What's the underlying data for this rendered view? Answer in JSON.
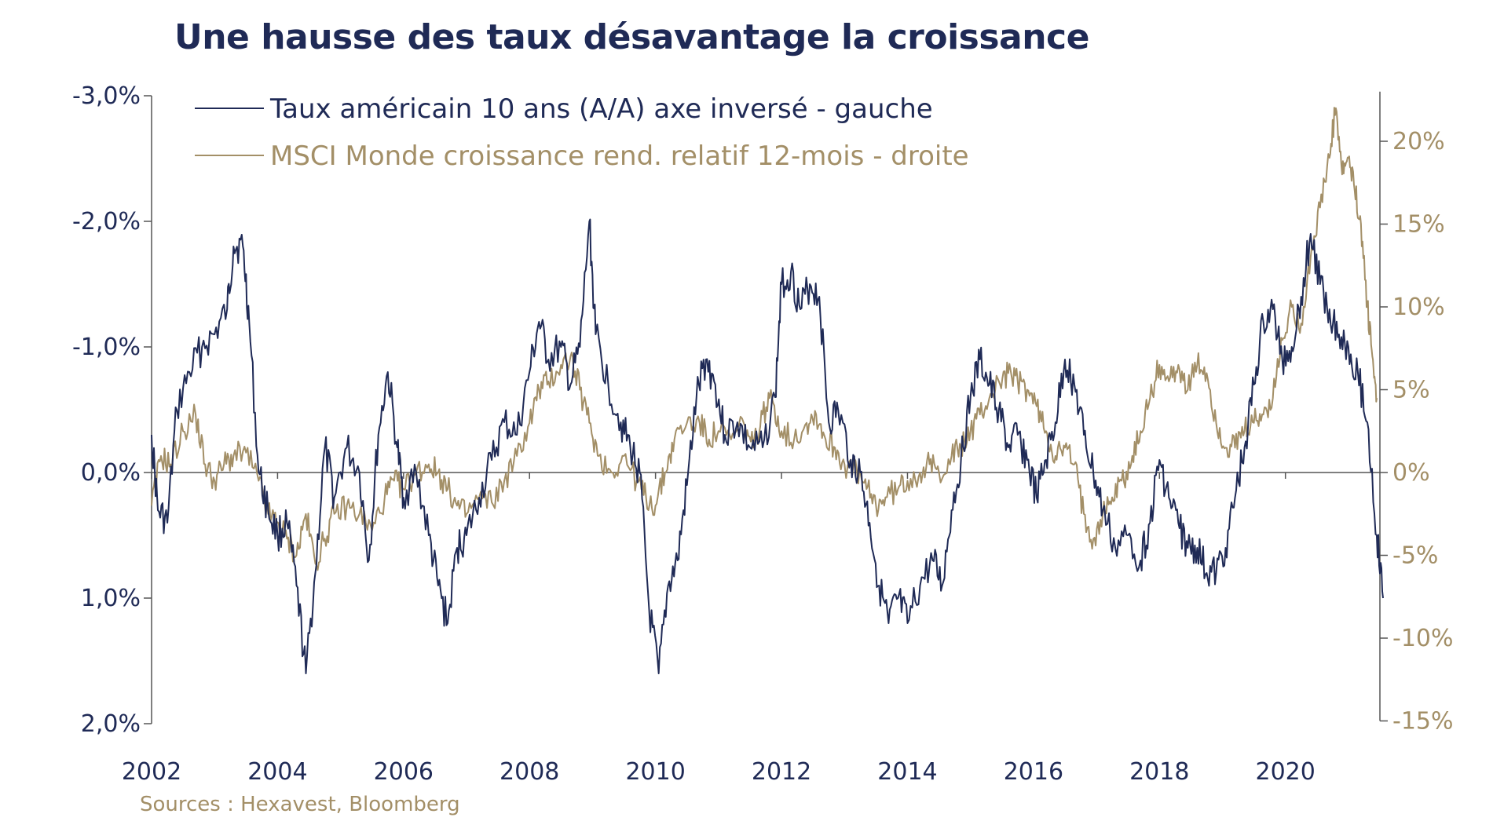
{
  "title": "Une hausse des taux désavantage la croissance",
  "source": "Sources : Hexavest, Bloomberg",
  "colors": {
    "navy": "#1f2a56",
    "tan": "#a38f67",
    "axis": "#555555"
  },
  "chart_data": {
    "type": "line",
    "xlim": [
      2002,
      2021.5
    ],
    "x_ticks": [
      "2002",
      "2004",
      "2006",
      "2008",
      "2010",
      "2012",
      "2014",
      "2016",
      "2018",
      "2020"
    ],
    "left_axis": {
      "inverted": true,
      "ylim": [
        -3.0,
        2.0
      ],
      "ticks": [
        -3,
        -2,
        -1,
        0,
        1,
        2
      ],
      "tick_labels": [
        "-3,0%",
        "-2,0%",
        "-1,0%",
        "0,0%",
        "1,0%",
        "2,0%"
      ]
    },
    "right_axis": {
      "ylim": [
        -15,
        23
      ],
      "ticks": [
        -15,
        -10,
        -5,
        0,
        5,
        10,
        15,
        20
      ],
      "tick_labels": [
        "-15%",
        "-10%",
        "-5%",
        "0%",
        "5%",
        "10%",
        "15%",
        "20%"
      ]
    },
    "legend_position": "top-left",
    "series": [
      {
        "name": "Taux américain 10 ans (A/A) axe inversé - gauche",
        "axis": "left",
        "color": "#1f2a56",
        "points": [
          [
            2002.0,
            -0.3
          ],
          [
            2002.1,
            0.3
          ],
          [
            2002.25,
            0.4
          ],
          [
            2002.4,
            -0.5
          ],
          [
            2002.6,
            -0.8
          ],
          [
            2002.8,
            -1.0
          ],
          [
            2003.0,
            -1.1
          ],
          [
            2003.2,
            -1.3
          ],
          [
            2003.3,
            -1.8
          ],
          [
            2003.45,
            -1.8
          ],
          [
            2003.55,
            -1.2
          ],
          [
            2003.7,
            0.0
          ],
          [
            2003.85,
            0.3
          ],
          [
            2004.0,
            0.5
          ],
          [
            2004.15,
            0.4
          ],
          [
            2004.3,
            0.9
          ],
          [
            2004.45,
            1.6
          ],
          [
            2004.6,
            0.8
          ],
          [
            2004.75,
            -0.2
          ],
          [
            2004.9,
            0.2
          ],
          [
            2005.1,
            -0.2
          ],
          [
            2005.3,
            0.0
          ],
          [
            2005.45,
            0.7
          ],
          [
            2005.6,
            -0.3
          ],
          [
            2005.75,
            -0.8
          ],
          [
            2005.9,
            -0.2
          ],
          [
            2006.0,
            0.2
          ],
          [
            2006.2,
            0.0
          ],
          [
            2006.4,
            0.5
          ],
          [
            2006.55,
            0.9
          ],
          [
            2006.7,
            1.2
          ],
          [
            2006.85,
            0.6
          ],
          [
            2007.0,
            0.5
          ],
          [
            2007.2,
            0.2
          ],
          [
            2007.4,
            -0.1
          ],
          [
            2007.6,
            -0.4
          ],
          [
            2007.8,
            -0.3
          ],
          [
            2008.0,
            -0.8
          ],
          [
            2008.15,
            -1.2
          ],
          [
            2008.3,
            -0.9
          ],
          [
            2008.5,
            -1.0
          ],
          [
            2008.65,
            -0.7
          ],
          [
            2008.8,
            -1.0
          ],
          [
            2008.95,
            -2.0
          ],
          [
            2009.05,
            -1.1
          ],
          [
            2009.25,
            -0.7
          ],
          [
            2009.45,
            -0.4
          ],
          [
            2009.6,
            -0.2
          ],
          [
            2009.75,
            0.0
          ],
          [
            2009.9,
            1.1
          ],
          [
            2010.05,
            1.6
          ],
          [
            2010.2,
            0.9
          ],
          [
            2010.35,
            0.7
          ],
          [
            2010.5,
            0.1
          ],
          [
            2010.65,
            -0.6
          ],
          [
            2010.8,
            -0.9
          ],
          [
            2010.95,
            -0.7
          ],
          [
            2011.1,
            -0.3
          ],
          [
            2011.3,
            -0.4
          ],
          [
            2011.5,
            -0.2
          ],
          [
            2011.7,
            -0.2
          ],
          [
            2011.9,
            -0.6
          ],
          [
            2012.0,
            -1.5
          ],
          [
            2012.15,
            -1.6
          ],
          [
            2012.3,
            -1.3
          ],
          [
            2012.45,
            -1.5
          ],
          [
            2012.6,
            -1.4
          ],
          [
            2012.75,
            -0.4
          ],
          [
            2012.9,
            -0.5
          ],
          [
            2013.1,
            -0.1
          ],
          [
            2013.25,
            0.0
          ],
          [
            2013.4,
            0.4
          ],
          [
            2013.55,
            0.9
          ],
          [
            2013.7,
            1.2
          ],
          [
            2013.85,
            1.0
          ],
          [
            2014.0,
            1.2
          ],
          [
            2014.2,
            0.9
          ],
          [
            2014.4,
            0.7
          ],
          [
            2014.55,
            0.9
          ],
          [
            2014.7,
            0.3
          ],
          [
            2014.85,
            -0.1
          ],
          [
            2015.0,
            -0.6
          ],
          [
            2015.15,
            -0.9
          ],
          [
            2015.3,
            -0.7
          ],
          [
            2015.45,
            -0.5
          ],
          [
            2015.6,
            -0.2
          ],
          [
            2015.75,
            -0.3
          ],
          [
            2015.9,
            -0.1
          ],
          [
            2016.05,
            0.2
          ],
          [
            2016.2,
            -0.1
          ],
          [
            2016.35,
            -0.4
          ],
          [
            2016.5,
            -0.9
          ],
          [
            2016.65,
            -0.7
          ],
          [
            2016.8,
            -0.3
          ],
          [
            2016.95,
            0.0
          ],
          [
            2017.1,
            0.3
          ],
          [
            2017.3,
            0.6
          ],
          [
            2017.5,
            0.5
          ],
          [
            2017.7,
            0.7
          ],
          [
            2017.85,
            0.4
          ],
          [
            2018.0,
            -0.1
          ],
          [
            2018.15,
            0.2
          ],
          [
            2018.3,
            0.4
          ],
          [
            2018.45,
            0.6
          ],
          [
            2018.6,
            0.6
          ],
          [
            2018.75,
            0.8
          ],
          [
            2018.9,
            0.8
          ],
          [
            2019.05,
            0.6
          ],
          [
            2019.2,
            0.2
          ],
          [
            2019.35,
            -0.2
          ],
          [
            2019.5,
            -0.7
          ],
          [
            2019.65,
            -1.2
          ],
          [
            2019.8,
            -1.3
          ],
          [
            2019.95,
            -0.9
          ],
          [
            2020.1,
            -1.0
          ],
          [
            2020.25,
            -1.4
          ],
          [
            2020.4,
            -1.9
          ],
          [
            2020.55,
            -1.5
          ],
          [
            2020.7,
            -1.3
          ],
          [
            2020.85,
            -1.1
          ],
          [
            2021.0,
            -1.0
          ],
          [
            2021.15,
            -0.8
          ],
          [
            2021.3,
            -0.4
          ],
          [
            2021.45,
            0.5
          ],
          [
            2021.55,
            1.0
          ]
        ]
      },
      {
        "name": "MSCI Monde croissance rend. relatif 12-mois - droite",
        "axis": "right",
        "color": "#a38f67",
        "points": [
          [
            2002.0,
            -2.0
          ],
          [
            2002.15,
            1.0
          ],
          [
            2002.3,
            0.5
          ],
          [
            2002.5,
            2.5
          ],
          [
            2002.7,
            3.5
          ],
          [
            2002.85,
            0.5
          ],
          [
            2003.0,
            -0.5
          ],
          [
            2003.15,
            0.5
          ],
          [
            2003.3,
            1.0
          ],
          [
            2003.5,
            1.2
          ],
          [
            2003.7,
            -0.5
          ],
          [
            2003.85,
            -2.5
          ],
          [
            2004.0,
            -3.0
          ],
          [
            2004.15,
            -4.0
          ],
          [
            2004.3,
            -5.0
          ],
          [
            2004.45,
            -2.5
          ],
          [
            2004.6,
            -5.5
          ],
          [
            2004.75,
            -4.0
          ],
          [
            2004.9,
            -2.5
          ],
          [
            2005.1,
            -2.0
          ],
          [
            2005.3,
            -2.5
          ],
          [
            2005.5,
            -3.5
          ],
          [
            2005.7,
            -1.5
          ],
          [
            2005.85,
            -0.5
          ],
          [
            2006.0,
            -1.0
          ],
          [
            2006.2,
            0.0
          ],
          [
            2006.4,
            0.5
          ],
          [
            2006.55,
            0.0
          ],
          [
            2006.7,
            -1.0
          ],
          [
            2006.85,
            -2.0
          ],
          [
            2007.0,
            -2.5
          ],
          [
            2007.2,
            -1.5
          ],
          [
            2007.4,
            -1.8
          ],
          [
            2007.6,
            -0.5
          ],
          [
            2007.8,
            1.0
          ],
          [
            2008.0,
            3.0
          ],
          [
            2008.15,
            5.0
          ],
          [
            2008.3,
            5.5
          ],
          [
            2008.5,
            6.5
          ],
          [
            2008.65,
            7.0
          ],
          [
            2008.8,
            5.0
          ],
          [
            2008.95,
            3.0
          ],
          [
            2009.1,
            1.0
          ],
          [
            2009.3,
            0.0
          ],
          [
            2009.5,
            1.0
          ],
          [
            2009.7,
            -0.5
          ],
          [
            2009.85,
            -1.5
          ],
          [
            2010.0,
            -2.0
          ],
          [
            2010.15,
            0.0
          ],
          [
            2010.3,
            2.0
          ],
          [
            2010.5,
            3.0
          ],
          [
            2010.7,
            3.0
          ],
          [
            2010.85,
            2.0
          ],
          [
            2011.0,
            2.5
          ],
          [
            2011.2,
            2.0
          ],
          [
            2011.4,
            3.0
          ],
          [
            2011.55,
            1.5
          ],
          [
            2011.7,
            3.5
          ],
          [
            2011.85,
            4.5
          ],
          [
            2012.0,
            2.5
          ],
          [
            2012.2,
            2.0
          ],
          [
            2012.4,
            3.0
          ],
          [
            2012.55,
            3.5
          ],
          [
            2012.7,
            2.0
          ],
          [
            2012.85,
            1.5
          ],
          [
            2013.0,
            0.5
          ],
          [
            2013.2,
            0.0
          ],
          [
            2013.35,
            -1.0
          ],
          [
            2013.5,
            -2.0
          ],
          [
            2013.65,
            -1.5
          ],
          [
            2013.85,
            -1.0
          ],
          [
            2014.0,
            -0.5
          ],
          [
            2014.2,
            0.0
          ],
          [
            2014.35,
            0.5
          ],
          [
            2014.5,
            0.0
          ],
          [
            2014.7,
            1.0
          ],
          [
            2014.85,
            1.5
          ],
          [
            2015.0,
            2.5
          ],
          [
            2015.15,
            3.5
          ],
          [
            2015.3,
            4.5
          ],
          [
            2015.45,
            5.5
          ],
          [
            2015.6,
            6.0
          ],
          [
            2015.75,
            5.5
          ],
          [
            2015.9,
            5.0
          ],
          [
            2016.05,
            4.0
          ],
          [
            2016.2,
            2.5
          ],
          [
            2016.35,
            1.0
          ],
          [
            2016.5,
            1.5
          ],
          [
            2016.65,
            0.5
          ],
          [
            2016.8,
            -2.5
          ],
          [
            2016.95,
            -4.0
          ],
          [
            2017.1,
            -2.5
          ],
          [
            2017.25,
            -1.5
          ],
          [
            2017.4,
            -0.5
          ],
          [
            2017.55,
            0.5
          ],
          [
            2017.7,
            2.5
          ],
          [
            2017.85,
            4.5
          ],
          [
            2018.0,
            6.5
          ],
          [
            2018.15,
            5.5
          ],
          [
            2018.3,
            6.5
          ],
          [
            2018.45,
            5.0
          ],
          [
            2018.6,
            6.5
          ],
          [
            2018.75,
            6.0
          ],
          [
            2018.9,
            3.0
          ],
          [
            2019.05,
            1.5
          ],
          [
            2019.2,
            1.5
          ],
          [
            2019.35,
            2.5
          ],
          [
            2019.5,
            3.0
          ],
          [
            2019.65,
            3.5
          ],
          [
            2019.8,
            4.5
          ],
          [
            2019.95,
            8.0
          ],
          [
            2020.1,
            10.0
          ],
          [
            2020.25,
            9.0
          ],
          [
            2020.4,
            13.0
          ],
          [
            2020.55,
            16.0
          ],
          [
            2020.7,
            19.0
          ],
          [
            2020.8,
            22.0
          ],
          [
            2020.9,
            18.0
          ],
          [
            2021.0,
            19.0
          ],
          [
            2021.1,
            17.0
          ],
          [
            2021.2,
            15.0
          ],
          [
            2021.3,
            10.0
          ],
          [
            2021.38,
            7.0
          ],
          [
            2021.45,
            4.5
          ]
        ]
      }
    ]
  }
}
